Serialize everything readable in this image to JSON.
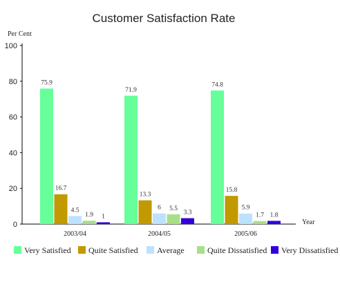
{
  "chart_data": {
    "type": "bar",
    "title": "Customer Satisfaction Rate",
    "ylabel": "Per Cent",
    "xlabel": "Year",
    "ylim": [
      0,
      100
    ],
    "yticks": [
      0,
      20,
      40,
      60,
      80,
      100
    ],
    "grid": false,
    "legend_position": "bottom",
    "categories": [
      "2003/04",
      "2004/05",
      "2005/06"
    ],
    "series": [
      {
        "name": "Very Satisfied",
        "color": "#66ff99",
        "values": [
          75.9,
          71.9,
          74.8
        ],
        "labels": [
          "75.9",
          "71.9",
          "74.8"
        ]
      },
      {
        "name": "Quite Satisfied",
        "color": "#c09a00",
        "values": [
          16.7,
          13.3,
          15.8
        ],
        "labels": [
          "16.7",
          "13.3",
          "15.8"
        ]
      },
      {
        "name": "Average",
        "color": "#bde2ff",
        "values": [
          4.5,
          6,
          5.9
        ],
        "labels": [
          "4.5",
          "6",
          "5.9"
        ]
      },
      {
        "name": "Quite Dissatisfied",
        "color": "#a8e08a",
        "values": [
          1.9,
          5.5,
          1.7
        ],
        "labels": [
          "1.9",
          "5.5",
          "1.7"
        ]
      },
      {
        "name": "Very Dissatisfied",
        "color": "#3300dd",
        "values": [
          1,
          3.3,
          1.8
        ],
        "labels": [
          "1",
          "3.3",
          "1.8"
        ]
      }
    ]
  }
}
